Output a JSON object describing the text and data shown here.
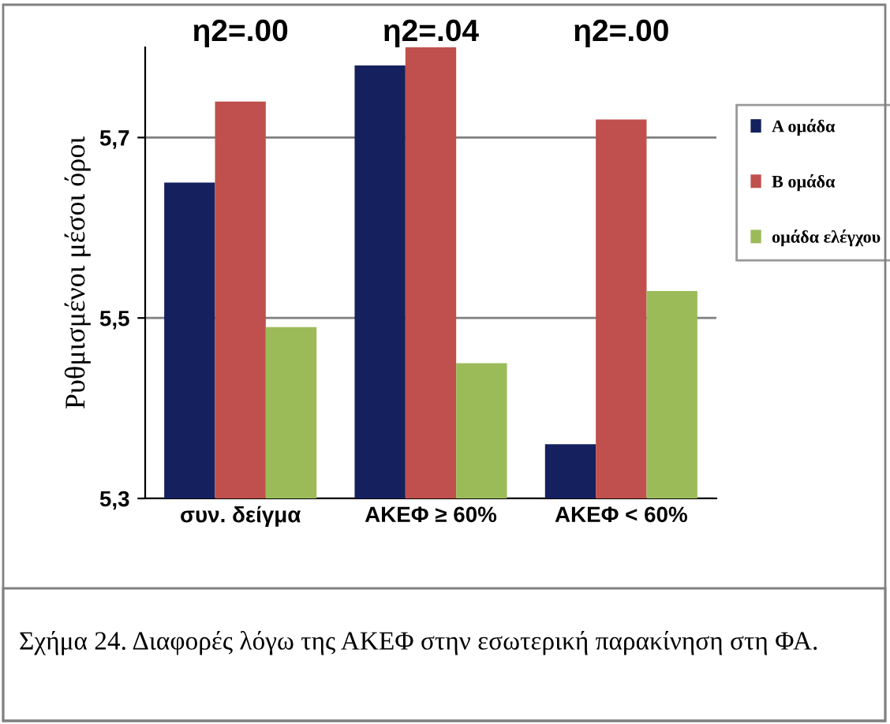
{
  "chart_data": {
    "type": "bar",
    "ylabel": "Ρυθμισμένοι μέσοι όροι",
    "categories": [
      "συν. δείγμα",
      "ΑΚΕΦ ≥ 60%",
      "ΑΚΕΦ < 60%"
    ],
    "series": [
      {
        "name": "Α ομάδα",
        "color": "#14215e",
        "values": [
          5.65,
          5.78,
          5.36
        ]
      },
      {
        "name": "Β ομάδα",
        "color": "#c0504d",
        "values": [
          5.74,
          5.8,
          5.72
        ]
      },
      {
        "name": "ομάδα ελέγχου",
        "color": "#9bbb59",
        "values": [
          5.49,
          5.45,
          5.53
        ]
      }
    ],
    "ylim": [
      5.3,
      5.8
    ],
    "yticks": [
      {
        "value": 5.3,
        "label": "5,3"
      },
      {
        "value": 5.5,
        "label": "5,5"
      },
      {
        "value": 5.7,
        "label": "5,7"
      }
    ],
    "grid": "y",
    "legend": "right",
    "annotations": [
      "η2=.00",
      "η2=.04",
      "η2=.00",
      "Σχήμα 24.",
      "Διαφορές λόγω της ΑΚΕΦ στην εσωτερική παρακίνηση στη ΦΑ."
    ]
  }
}
